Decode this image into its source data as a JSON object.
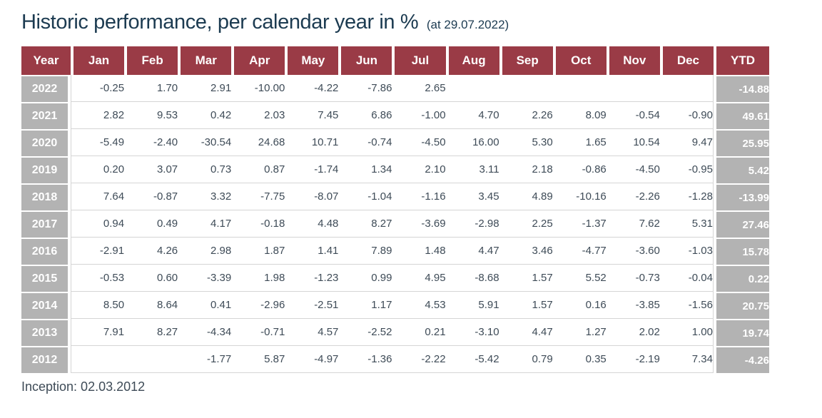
{
  "page": {
    "title": "Historic performance, per calendar year in %",
    "title_suffix": "(at 29.07.2022)",
    "footer": "Inception: 02.03.2012"
  },
  "colors": {
    "header_bg": "#9a3b46",
    "side_bg": "#b3b3b3",
    "title_text": "#1c3b51",
    "data_text": "#3e4b57",
    "grid_line": "#d5d5d5"
  },
  "chart_data": {
    "type": "table",
    "title": "Historic performance, per calendar year in %",
    "as_of_date": "29.07.2022",
    "inception_date": "02.03.2012",
    "unit": "%",
    "columns": [
      "Year",
      "Jan",
      "Feb",
      "Mar",
      "Apr",
      "May",
      "Jun",
      "Jul",
      "Aug",
      "Sep",
      "Oct",
      "Nov",
      "Dec",
      "YTD"
    ],
    "rows": [
      {
        "year": "2022",
        "months": [
          "-0.25",
          "1.70",
          "2.91",
          "-10.00",
          "-4.22",
          "-7.86",
          "2.65",
          "",
          "",
          "",
          "",
          ""
        ],
        "ytd": "-14.88"
      },
      {
        "year": "2021",
        "months": [
          "2.82",
          "9.53",
          "0.42",
          "2.03",
          "7.45",
          "6.86",
          "-1.00",
          "4.70",
          "2.26",
          "8.09",
          "-0.54",
          "-0.90"
        ],
        "ytd": "49.61"
      },
      {
        "year": "2020",
        "months": [
          "-5.49",
          "-2.40",
          "-30.54",
          "24.68",
          "10.71",
          "-0.74",
          "-4.50",
          "16.00",
          "5.30",
          "1.65",
          "10.54",
          "9.47"
        ],
        "ytd": "25.95"
      },
      {
        "year": "2019",
        "months": [
          "0.20",
          "3.07",
          "0.73",
          "0.87",
          "-1.74",
          "1.34",
          "2.10",
          "3.11",
          "2.18",
          "-0.86",
          "-4.50",
          "-0.95"
        ],
        "ytd": "5.42"
      },
      {
        "year": "2018",
        "months": [
          "7.64",
          "-0.87",
          "3.32",
          "-7.75",
          "-8.07",
          "-1.04",
          "-1.16",
          "3.45",
          "4.89",
          "-10.16",
          "-2.26",
          "-1.28"
        ],
        "ytd": "-13.99"
      },
      {
        "year": "2017",
        "months": [
          "0.94",
          "0.49",
          "4.17",
          "-0.18",
          "4.48",
          "8.27",
          "-3.69",
          "-2.98",
          "2.25",
          "-1.37",
          "7.62",
          "5.31"
        ],
        "ytd": "27.46"
      },
      {
        "year": "2016",
        "months": [
          "-2.91",
          "4.26",
          "2.98",
          "1.87",
          "1.41",
          "7.89",
          "1.48",
          "4.47",
          "3.46",
          "-4.77",
          "-3.60",
          "-1.03"
        ],
        "ytd": "15.78"
      },
      {
        "year": "2015",
        "months": [
          "-0.53",
          "0.60",
          "-3.39",
          "1.98",
          "-1.23",
          "0.99",
          "4.95",
          "-8.68",
          "1.57",
          "5.52",
          "-0.73",
          "-0.04"
        ],
        "ytd": "0.22"
      },
      {
        "year": "2014",
        "months": [
          "8.50",
          "8.64",
          "0.41",
          "-2.96",
          "-2.51",
          "1.17",
          "4.53",
          "5.91",
          "1.57",
          "0.16",
          "-3.85",
          "-1.56"
        ],
        "ytd": "20.75"
      },
      {
        "year": "2013",
        "months": [
          "7.91",
          "8.27",
          "-4.34",
          "-0.71",
          "4.57",
          "-2.52",
          "0.21",
          "-3.10",
          "4.47",
          "1.27",
          "2.02",
          "1.00"
        ],
        "ytd": "19.74"
      },
      {
        "year": "2012",
        "months": [
          "",
          "",
          "-1.77",
          "5.87",
          "-4.97",
          "-1.36",
          "-2.22",
          "-5.42",
          "0.79",
          "0.35",
          "-2.19",
          "7.34"
        ],
        "ytd": "-4.26"
      }
    ]
  }
}
